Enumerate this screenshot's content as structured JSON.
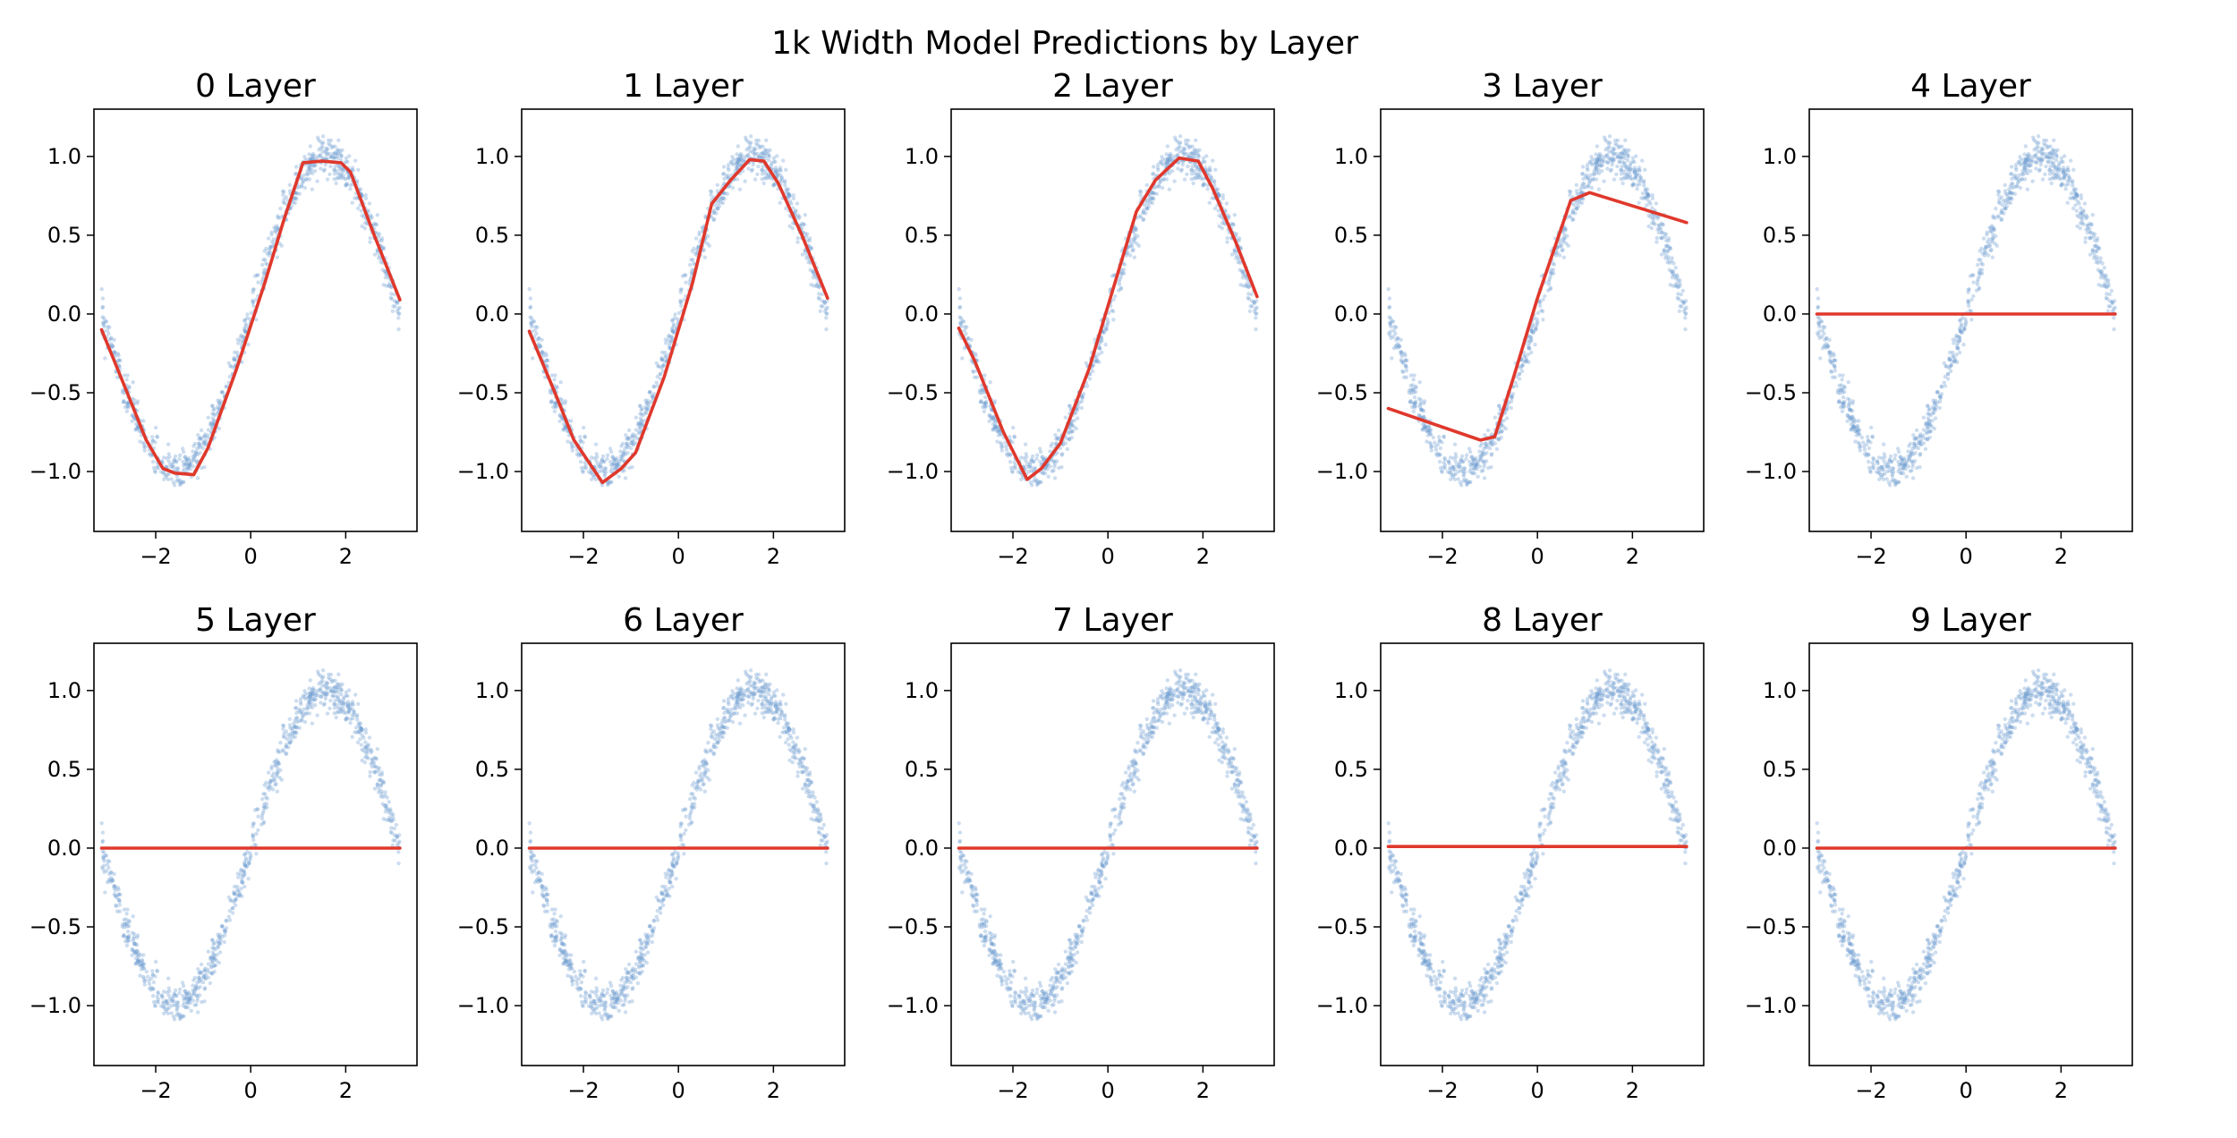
{
  "figure": {
    "suptitle": "1k Width Model Predictions by Layer"
  },
  "chart_data": {
    "type": "scatter",
    "layout": "2 rows x 5 columns",
    "grid": false,
    "xlim": [
      -3.3,
      3.5
    ],
    "ylim": [
      -1.38,
      1.3
    ],
    "xticks": [
      -2,
      0,
      2
    ],
    "xtick_labels": [
      "−2",
      "0",
      "2"
    ],
    "yticks": [
      -1.0,
      -0.5,
      0.0,
      0.5,
      1.0
    ],
    "ytick_labels": [
      "−1.0",
      "−0.5",
      "0.0",
      "0.5",
      "1.0"
    ],
    "scatter_color": "#6f9fd0",
    "line_color": "#e0382c",
    "data_note_values": {
      "target_function": "sin(x)",
      "x_range": [
        -3.14,
        3.14
      ]
    },
    "panels": [
      {
        "title": "0 Layer",
        "line": {
          "x": [
            -3.14,
            -2.6,
            -2.2,
            -1.85,
            -1.6,
            -1.2,
            -0.9,
            -0.3,
            0.3,
            0.7,
            1.1,
            1.5,
            1.9,
            2.1,
            2.6,
            3.14
          ],
          "y": [
            -0.1,
            -0.5,
            -0.8,
            -0.98,
            -1.01,
            -1.02,
            -0.85,
            -0.35,
            0.2,
            0.6,
            0.96,
            0.97,
            0.96,
            0.9,
            0.5,
            0.09
          ]
        }
      },
      {
        "title": "1 Layer",
        "line": {
          "x": [
            -3.14,
            -2.6,
            -2.2,
            -1.6,
            -1.2,
            -0.9,
            -0.3,
            0.3,
            0.7,
            1.1,
            1.5,
            1.8,
            2.1,
            2.6,
            3.14
          ],
          "y": [
            -0.11,
            -0.5,
            -0.8,
            -1.07,
            -0.98,
            -0.88,
            -0.4,
            0.2,
            0.7,
            0.85,
            0.98,
            0.97,
            0.83,
            0.5,
            0.1
          ]
        }
      },
      {
        "title": "2 Layer",
        "line": {
          "x": [
            -3.14,
            -2.8,
            -2.2,
            -1.7,
            -1.4,
            -1.0,
            -0.4,
            0.2,
            0.6,
            1.0,
            1.5,
            1.9,
            2.2,
            2.7,
            3.14
          ],
          "y": [
            -0.09,
            -0.3,
            -0.75,
            -1.05,
            -0.98,
            -0.82,
            -0.35,
            0.25,
            0.65,
            0.85,
            0.99,
            0.97,
            0.8,
            0.45,
            0.11
          ]
        }
      },
      {
        "title": "3 Layer",
        "line": {
          "x": [
            -3.14,
            -1.2,
            -0.9,
            -0.5,
            0.0,
            0.7,
            1.1,
            3.14
          ],
          "y": [
            -0.6,
            -0.8,
            -0.78,
            -0.4,
            0.1,
            0.72,
            0.77,
            0.58
          ]
        }
      },
      {
        "title": "4 Layer",
        "line": {
          "x": [
            -3.14,
            3.14
          ],
          "y": [
            0.0,
            0.0
          ]
        }
      },
      {
        "title": "5 Layer",
        "line": {
          "x": [
            -3.14,
            3.14
          ],
          "y": [
            0.0,
            0.0
          ]
        }
      },
      {
        "title": "6 Layer",
        "line": {
          "x": [
            -3.14,
            3.14
          ],
          "y": [
            0.0,
            0.0
          ]
        }
      },
      {
        "title": "7 Layer",
        "line": {
          "x": [
            -3.14,
            3.14
          ],
          "y": [
            0.0,
            0.0
          ]
        }
      },
      {
        "title": "8 Layer",
        "line": {
          "x": [
            -3.14,
            3.14
          ],
          "y": [
            0.01,
            0.01
          ]
        }
      },
      {
        "title": "9 Layer",
        "line": {
          "x": [
            -3.14,
            3.14
          ],
          "y": [
            0.0,
            0.0
          ]
        }
      }
    ]
  }
}
